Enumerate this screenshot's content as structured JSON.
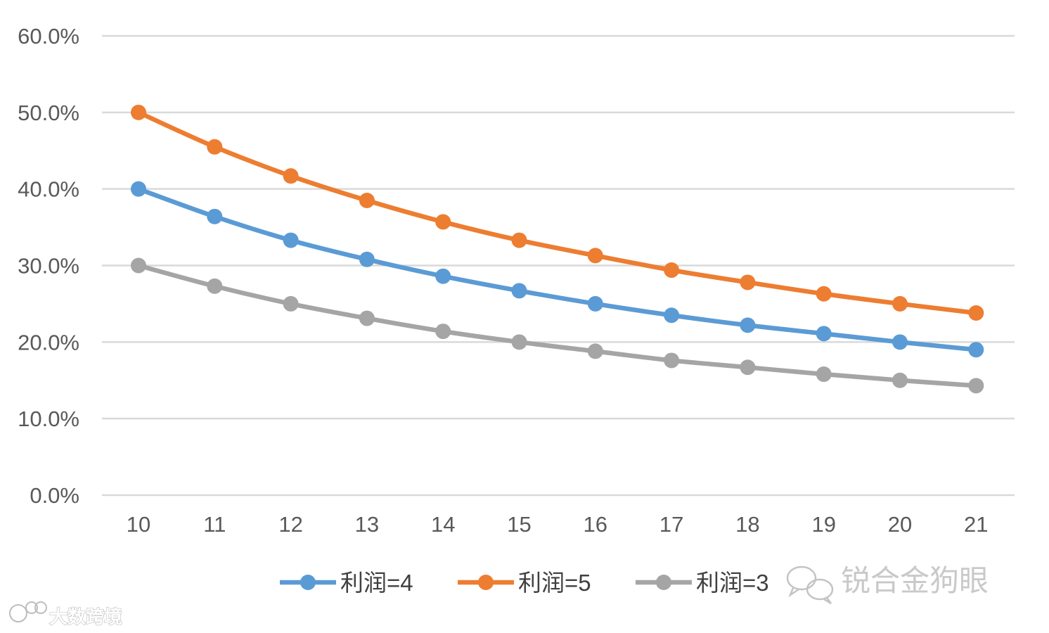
{
  "chart_data": {
    "type": "line",
    "x": [
      10,
      11,
      12,
      13,
      14,
      15,
      16,
      17,
      18,
      19,
      20,
      21
    ],
    "x_tick_labels": [
      "10",
      "11",
      "12",
      "13",
      "14",
      "15",
      "16",
      "17",
      "18",
      "19",
      "20",
      "21"
    ],
    "y_tick_labels": [
      "0.0%",
      "10.0%",
      "20.0%",
      "30.0%",
      "40.0%",
      "50.0%",
      "60.0%"
    ],
    "ylim": [
      0,
      60
    ],
    "grid": true,
    "legend_position": "bottom",
    "series": [
      {
        "name": "利润=4",
        "color": "#5b9bd5",
        "values": [
          40.0,
          36.4,
          33.3,
          30.8,
          28.6,
          26.7,
          25.0,
          23.5,
          22.2,
          21.1,
          20.0,
          19.0
        ]
      },
      {
        "name": "利润=5",
        "color": "#ed7d31",
        "values": [
          50.0,
          45.5,
          41.7,
          38.5,
          35.7,
          33.3,
          31.3,
          29.4,
          27.8,
          26.3,
          25.0,
          23.8
        ]
      },
      {
        "name": "利润=3",
        "color": "#a5a5a5",
        "values": [
          30.0,
          27.3,
          25.0,
          23.1,
          21.4,
          20.0,
          18.8,
          17.6,
          16.7,
          15.8,
          15.0,
          14.3
        ]
      }
    ]
  },
  "watermarks": {
    "wechat_name": "锐合金狗眼",
    "site_logo_text": "大数跨境"
  }
}
